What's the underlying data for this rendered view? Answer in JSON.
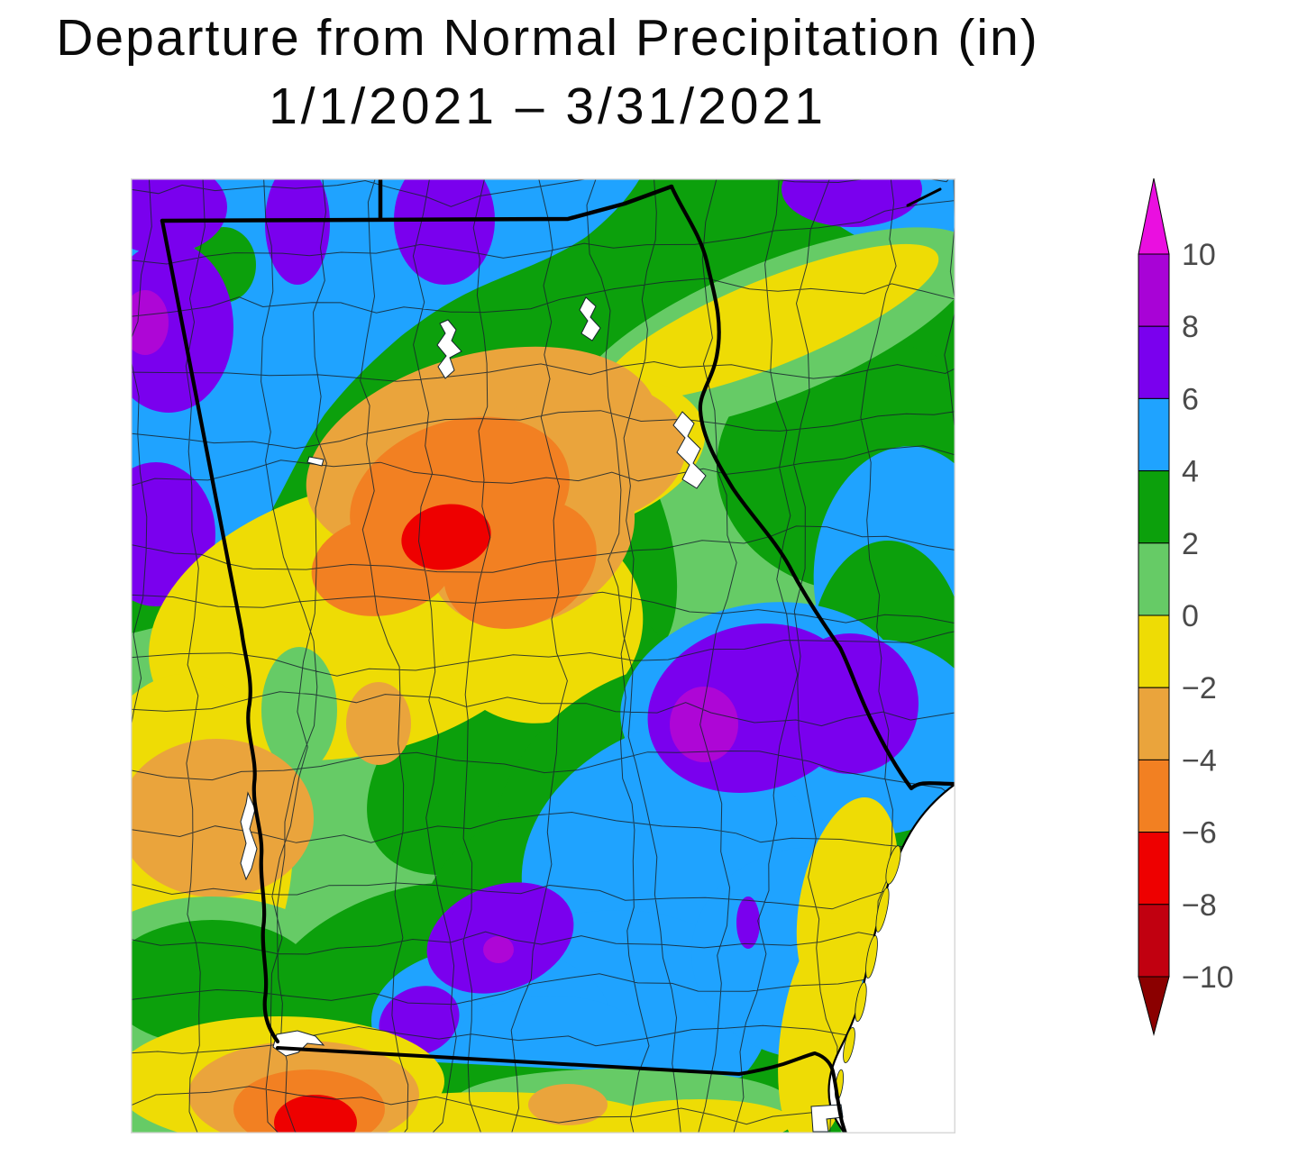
{
  "title": {
    "line1": "Departure from Normal Precipitation (in)",
    "line2": "1/1/2021 – 3/31/2021"
  },
  "colorbar": {
    "ticks": [
      "10",
      "8",
      "6",
      "4",
      "2",
      "0",
      "−2",
      "−4",
      "−6",
      "−8",
      "−10"
    ],
    "tick_color": "#4a4a4a",
    "arrow_top_color": "#EA0FE0",
    "arrow_bottom_color": "#8B0000",
    "box_colors_top_to_bottom": [
      "#A803D6",
      "#7A00EE",
      "#1FA3FF",
      "#0CA00C",
      "#66CB66",
      "#EEDC05",
      "#EAA43C",
      "#F28022",
      "#EE0000",
      "#C10010"
    ],
    "band_ranges_top_to_bottom": [
      "above 10",
      "8 to 10",
      "6 to 8",
      "4 to 6",
      "2 to 4",
      "0 to 2",
      "-2 to 0",
      "-4 to -2",
      "-6 to -4",
      "-8 to -6",
      "-10 to -8",
      "below -10"
    ]
  },
  "chart_data": {
    "type": "heatmap",
    "title": "Departure from Normal Precipitation (in)",
    "period": "1/1/2021 – 3/31/2021",
    "units": "inches",
    "region": "Georgia, USA (state and county boundaries shown)",
    "scale_ticks": [
      10,
      8,
      6,
      4,
      2,
      0,
      -2,
      -4,
      -6,
      -8,
      -10
    ],
    "legend_position": "right",
    "notable_readings": [
      {
        "area": "far-north Georgia / NC-TN border",
        "departure_in": "+4 to +8"
      },
      {
        "area": "northwest corner spots",
        "departure_in": "+8 to +10"
      },
      {
        "area": "west-central Georgia deficit core",
        "departure_in": "-6 to -8"
      },
      {
        "area": "broad northwest-central band",
        "departure_in": "-2 to -6"
      },
      {
        "area": "northeast Georgia ridge",
        "departure_in": "-2 to 0"
      },
      {
        "area": "east-central Georgia surplus core",
        "departure_in": "+6 to +10"
      },
      {
        "area": "south-central Georgia surplus",
        "departure_in": "+4 to +10"
      },
      {
        "area": "southeast / coastal strip",
        "departure_in": "-2 to +2"
      },
      {
        "area": "southwest corner deficit spot",
        "departure_in": "-6 to -8"
      },
      {
        "area": "most of eastern and southern Georgia",
        "departure_in": "+2 to +6"
      }
    ],
    "map_features": [
      "state-boundary",
      "county-boundaries",
      "lakes",
      "atlantic-coastline",
      "ocean"
    ]
  }
}
